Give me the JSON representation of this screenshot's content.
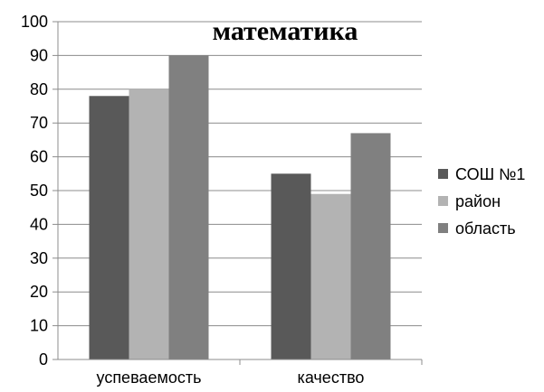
{
  "chart_data": {
    "type": "bar",
    "title": "математика",
    "categories": [
      "успеваемость",
      "качество"
    ],
    "series": [
      {
        "name": "СОШ №1",
        "values": [
          78,
          55
        ],
        "color": "#595959"
      },
      {
        "name": "район",
        "values": [
          80,
          49
        ],
        "color": "#b3b3b3"
      },
      {
        "name": "область",
        "values": [
          90,
          67
        ],
        "color": "#808080"
      }
    ],
    "ylim": [
      0,
      100
    ],
    "yticks": [
      0,
      10,
      20,
      30,
      40,
      50,
      60,
      70,
      80,
      90,
      100
    ],
    "xlabel": "",
    "ylabel": "",
    "grid": true,
    "legend": "right"
  }
}
